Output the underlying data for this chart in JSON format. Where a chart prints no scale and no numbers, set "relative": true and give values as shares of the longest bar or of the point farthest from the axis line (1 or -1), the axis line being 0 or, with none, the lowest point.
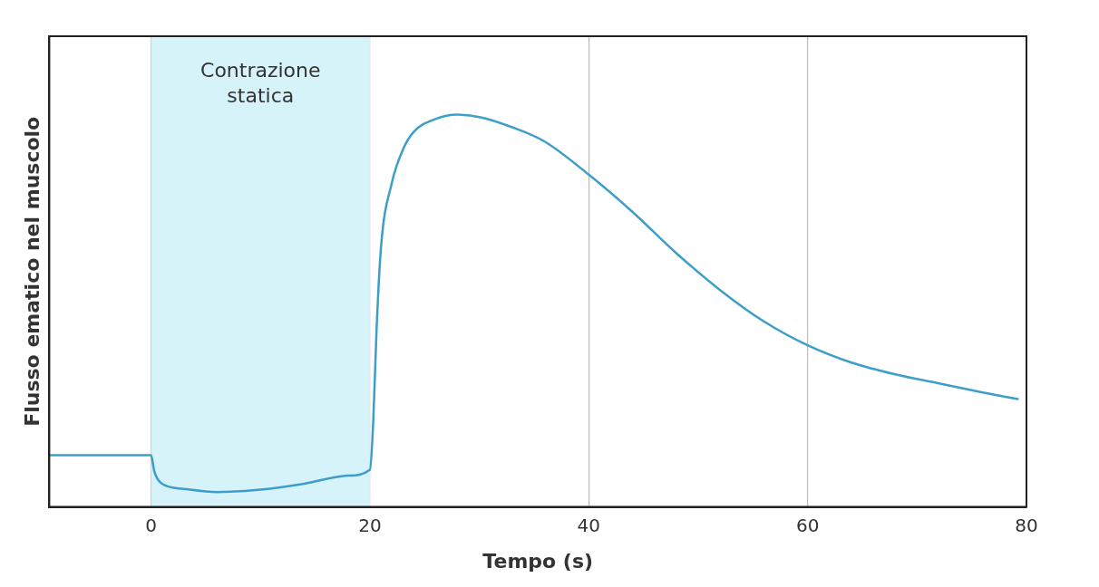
{
  "chart_data": {
    "type": "line",
    "relative": true,
    "xlabel": "Tempo (s)",
    "ylabel": "Flusso ematico nel muscolo",
    "xlim": [
      -9.3,
      80
    ],
    "xticks": [
      0,
      20,
      40,
      60,
      80
    ],
    "grid": "x",
    "marker": "none",
    "line_style": "solid",
    "bands": [
      {
        "axis": "x",
        "from": 0,
        "to": 20,
        "label": "Contrazione statica",
        "color": "#d6f3fa"
      }
    ],
    "series": [
      {
        "color": "#3d9fc9",
        "x": [
          -9.2,
          0,
          0.3,
          1,
          3,
          6,
          10,
          14,
          18,
          20,
          20.3,
          20.6,
          21,
          22,
          23,
          24,
          26,
          28,
          30,
          33,
          36,
          40,
          44,
          48,
          52,
          56,
          60,
          64,
          68,
          72,
          76,
          79.2
        ],
        "values": [
          0.132,
          0.132,
          0.09,
          0.059,
          0.046,
          0.038,
          0.044,
          0.059,
          0.08,
          0.095,
          0.216,
          0.447,
          0.658,
          0.826,
          0.91,
          0.956,
          0.989,
          1.0,
          0.994,
          0.968,
          0.931,
          0.847,
          0.752,
          0.647,
          0.553,
          0.473,
          0.412,
          0.368,
          0.338,
          0.315,
          0.292,
          0.275
        ]
      }
    ]
  }
}
